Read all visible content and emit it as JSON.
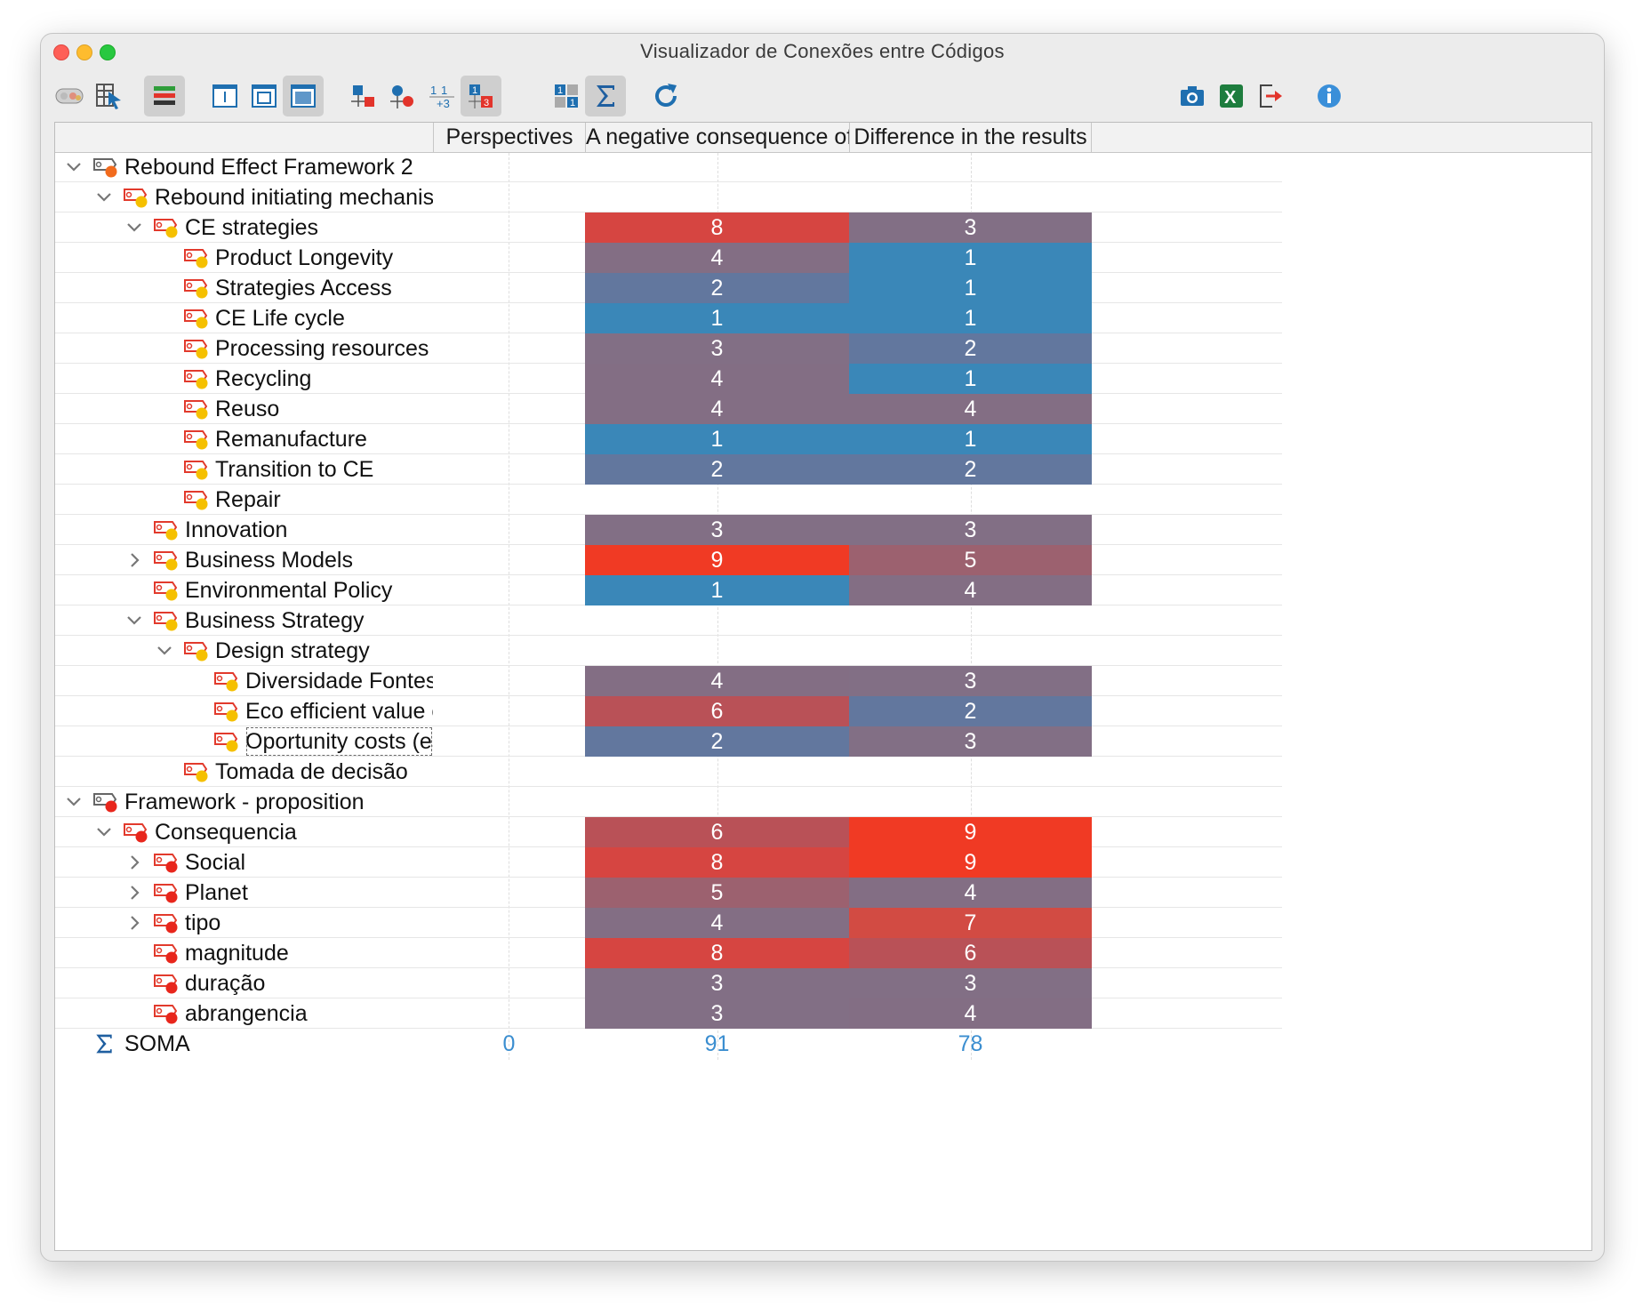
{
  "window": {
    "title": "Visualizador de Conexões entre Códigos"
  },
  "toolbar": {
    "left": [
      "code-palette-icon",
      "select-cursor-icon",
      "bars-view-icon",
      "layout-single-icon",
      "layout-frame-icon",
      "layout-wide-icon",
      "square-node-icon",
      "circle-node-icon",
      "numbers-sum-icon",
      "numbers-grid-icon",
      "numeric-badge-icon",
      "sigma-icon",
      "refresh-icon"
    ],
    "right": [
      "camera-icon",
      "excel-icon",
      "export-icon",
      "info-icon"
    ]
  },
  "columns": [
    "Perspectives",
    "A negative consequence of",
    "Difference in the results"
  ],
  "colors": {
    "c1": "#3a87b8",
    "c2": "#62779e",
    "c3": "#826f85",
    "c4": "#836e84",
    "c5": "#9c616f",
    "c6": "#b95157",
    "c7": "#d24b43",
    "c8": "#d64541",
    "c9": "#f03a24"
  },
  "rows": [
    {
      "label": "Rebound Effect Framework 2",
      "level": 0,
      "expander": "down",
      "dot": "#f26b1d",
      "cells": []
    },
    {
      "label": "Rebound initiating mechanisms",
      "level": 1,
      "expander": "down",
      "dot": "#f5c000",
      "cells": []
    },
    {
      "label": "CE strategies",
      "level": 2,
      "expander": "down",
      "dot": "#f5c000",
      "cells": [
        8,
        3
      ]
    },
    {
      "label": "Product Longevity",
      "level": 3,
      "expander": "",
      "dot": "#f5c000",
      "cells": [
        4,
        1
      ]
    },
    {
      "label": "Strategies Access",
      "level": 3,
      "expander": "",
      "dot": "#f5c000",
      "cells": [
        2,
        1
      ]
    },
    {
      "label": "CE Life cycle",
      "level": 3,
      "expander": "",
      "dot": "#f5c000",
      "cells": [
        1,
        1
      ]
    },
    {
      "label": "Processing resources",
      "level": 3,
      "expander": "",
      "dot": "#f5c000",
      "cells": [
        3,
        2
      ]
    },
    {
      "label": "Recycling",
      "level": 3,
      "expander": "",
      "dot": "#f5c000",
      "cells": [
        4,
        1
      ]
    },
    {
      "label": "Reuso",
      "level": 3,
      "expander": "",
      "dot": "#f5c000",
      "cells": [
        4,
        4
      ]
    },
    {
      "label": "Remanufacture",
      "level": 3,
      "expander": "",
      "dot": "#f5c000",
      "cells": [
        1,
        1
      ]
    },
    {
      "label": "Transition to CE",
      "level": 3,
      "expander": "",
      "dot": "#f5c000",
      "cells": [
        2,
        2
      ]
    },
    {
      "label": "Repair",
      "level": 3,
      "expander": "",
      "dot": "#f5c000",
      "cells": []
    },
    {
      "label": "Innovation",
      "level": 2,
      "expander": "",
      "dot": "#f5c000",
      "cells": [
        3,
        3
      ]
    },
    {
      "label": "Business Models",
      "level": 2,
      "expander": "right",
      "dot": "#f5c000",
      "cells": [
        9,
        5
      ]
    },
    {
      "label": "Environmental Policy",
      "level": 2,
      "expander": "",
      "dot": "#f5c000",
      "cells": [
        1,
        4
      ]
    },
    {
      "label": "Business Strategy",
      "level": 2,
      "expander": "down",
      "dot": "#f5c000",
      "cells": []
    },
    {
      "label": "Design strategy",
      "level": 3,
      "expander": "down",
      "dot": "#f5c000",
      "cells": []
    },
    {
      "label": "Diversidade Fontes",
      "level": 4,
      "expander": "",
      "dot": "#f5c000",
      "cells": [
        4,
        3
      ]
    },
    {
      "label": "Eco efficient value creation",
      "level": 4,
      "expander": "",
      "dot": "#f5c000",
      "cells": [
        6,
        2
      ]
    },
    {
      "label": "Oportunity costs (escolhas)",
      "level": 4,
      "expander": "",
      "dot": "#f5c000",
      "cells": [
        2,
        3
      ],
      "focused": true
    },
    {
      "label": "Tomada de decisão",
      "level": 3,
      "expander": "",
      "dot": "#f5c000",
      "cells": []
    },
    {
      "label": "Framework - proposition",
      "level": 0,
      "expander": "down",
      "dot": "#e8261c",
      "cells": []
    },
    {
      "label": "Consequencia",
      "level": 1,
      "expander": "down",
      "dot": "#e8261c",
      "cells": [
        6,
        9
      ]
    },
    {
      "label": "Social",
      "level": 2,
      "expander": "right",
      "dot": "#e8261c",
      "cells": [
        8,
        9
      ]
    },
    {
      "label": "Planet",
      "level": 2,
      "expander": "right",
      "dot": "#e8261c",
      "cells": [
        5,
        4
      ]
    },
    {
      "label": "tipo",
      "level": 2,
      "expander": "right",
      "dot": "#e8261c",
      "cells": [
        4,
        7
      ]
    },
    {
      "label": "magnitude",
      "level": 2,
      "expander": "",
      "dot": "#e8261c",
      "cells": [
        8,
        6
      ]
    },
    {
      "label": "duração",
      "level": 2,
      "expander": "",
      "dot": "#e8261c",
      "cells": [
        3,
        3
      ]
    },
    {
      "label": "abrangencia",
      "level": 2,
      "expander": "",
      "dot": "#e8261c",
      "cells": [
        3,
        4
      ]
    }
  ],
  "sum_row": {
    "label": "SOMA",
    "values": [
      "0",
      "91",
      "78"
    ]
  }
}
